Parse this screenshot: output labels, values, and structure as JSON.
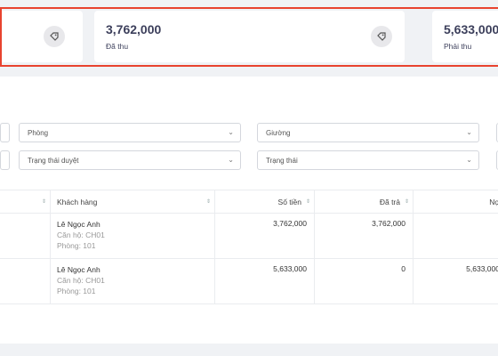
{
  "stats": {
    "card1": {
      "value": "",
      "label": "",
      "icon": "tag-icon"
    },
    "card2": {
      "value": "3,762,000",
      "label": "Đã thu",
      "icon": "tag-icon"
    },
    "card3": {
      "value": "5,633,000",
      "label": "Phải thu"
    }
  },
  "filters": {
    "room": "Phòng",
    "bed": "Giường",
    "approval_status": "Trạng thái duyệt",
    "status": "Trạng thái"
  },
  "table": {
    "headers": {
      "customer": "Khách hàng",
      "amount": "Số tiền",
      "paid": "Đã trả",
      "debt": "Nợ"
    },
    "rows": [
      {
        "customer": "Lê Ngọc Anh",
        "apartment": "Căn hộ: CH01",
        "room": "Phòng: 101",
        "amount": "3,762,000",
        "paid": "3,762,000",
        "debt": ""
      },
      {
        "customer": "Lê Ngọc Anh",
        "apartment": "Căn hộ: CH01",
        "room": "Phòng: 101",
        "amount": "5,633,000",
        "paid": "0",
        "debt": "5,633,000"
      }
    ]
  },
  "colors": {
    "highlight_border": "#e8432f",
    "card_text": "#3c3f5b"
  }
}
